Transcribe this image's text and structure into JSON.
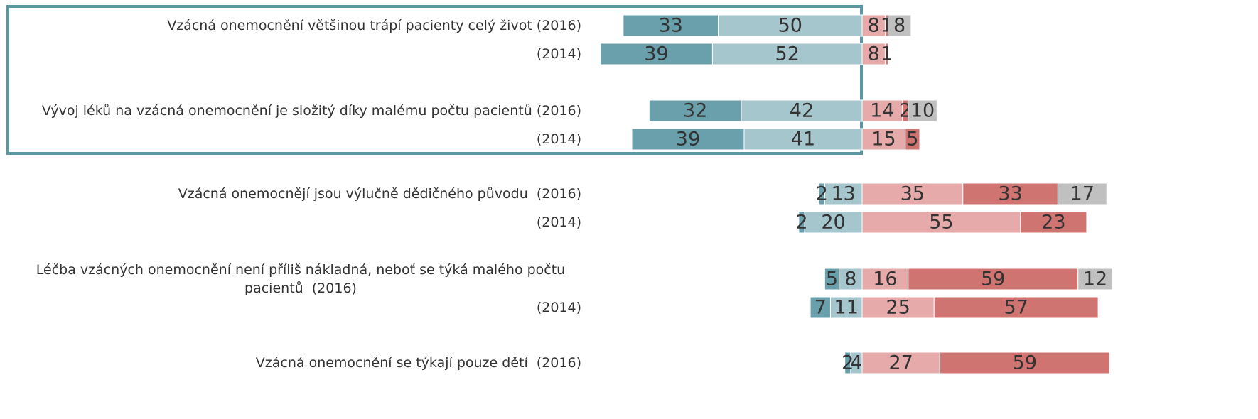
{
  "chart_data": {
    "type": "diverging_bar",
    "categories": [
      "Vzácná onemocnění většinou trápí pacienty celý život (2016)",
      "(2014)",
      "Vývoj léků na vzácná onemocnění je složitý díky malému počtu pacientů (2016)",
      "(2014)",
      "Vzácná onemocnějí jsou výlučně dědičného původu  (2016)",
      "(2014)",
      "Léčba vzácných onemocnění není příliš nákladná, neboť se týká malého počtu pacientů  (2016)",
      "(2014)",
      "Vzácná onemocnění se týkají pouze dětí  (2016)"
    ],
    "series": [
      {
        "color": "#6a9fac",
        "side": "left",
        "values": [
          33,
          39,
          32,
          39,
          2,
          2,
          5,
          7,
          2
        ]
      },
      {
        "color": "#a6c6cd",
        "side": "left",
        "values": [
          50,
          52,
          42,
          41,
          13,
          20,
          8,
          11,
          4
        ]
      },
      {
        "color": "#e5aaa9",
        "side": "right",
        "values": [
          8,
          8,
          14,
          15,
          35,
          55,
          16,
          25,
          27
        ]
      },
      {
        "color": "#d07472",
        "side": "right",
        "values": [
          1,
          1,
          2,
          5,
          33,
          23,
          59,
          57,
          59
        ]
      },
      {
        "color": "#c0c0c0",
        "side": "right",
        "values": [
          8,
          null,
          10,
          null,
          17,
          null,
          12,
          null,
          null
        ]
      }
    ]
  }
}
